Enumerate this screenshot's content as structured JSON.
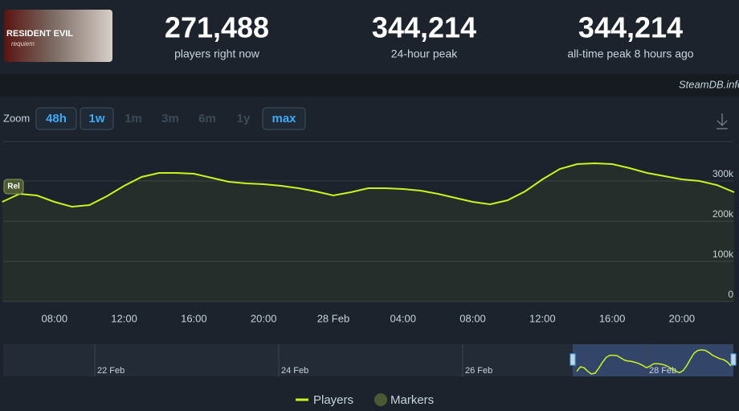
{
  "header": {
    "image_text": [
      "RESIDENT EVIL",
      "requiem"
    ],
    "stats": [
      {
        "value": "271,488",
        "label": "players right now"
      },
      {
        "value": "344,214",
        "label": "24-hour peak"
      },
      {
        "value": "344,214",
        "label": "all-time peak 8 hours ago"
      }
    ]
  },
  "source": "SteamDB.info",
  "zoom": {
    "label": "Zoom",
    "options": [
      {
        "label": "48h",
        "active": true
      },
      {
        "label": "1w",
        "active": true
      },
      {
        "label": "1m",
        "active": false
      },
      {
        "label": "3m",
        "active": false
      },
      {
        "label": "6m",
        "active": false
      },
      {
        "label": "1y",
        "active": false
      },
      {
        "label": "max",
        "active": true
      }
    ]
  },
  "chart_data": {
    "type": "line",
    "grid": true,
    "categories": [
      null,
      null,
      null,
      "08:00",
      null,
      null,
      null,
      "12:00",
      null,
      null,
      null,
      "16:00",
      null,
      null,
      null,
      "20:00",
      null,
      null,
      null,
      "28 Feb",
      null,
      null,
      null,
      "04:00",
      null,
      null,
      null,
      "08:00",
      null,
      null,
      null,
      "12:00",
      null,
      null,
      null,
      "16:00",
      null,
      null,
      null,
      "20:00",
      null,
      null,
      null
    ],
    "series": [
      {
        "name": "Players",
        "color": "#c8f51e",
        "values": [
          248000,
          268000,
          264000,
          248000,
          236000,
          240000,
          262000,
          288000,
          310000,
          320000,
          320000,
          318000,
          308000,
          298000,
          294000,
          292000,
          288000,
          282000,
          274000,
          264000,
          272000,
          282000,
          282000,
          280000,
          276000,
          268000,
          258000,
          248000,
          242000,
          252000,
          274000,
          304000,
          330000,
          342000,
          344000,
          342000,
          332000,
          320000,
          312000,
          304000,
          300000,
          290000,
          272000
        ]
      }
    ],
    "markers": [
      "Rel"
    ],
    "marker_legend": "Markers",
    "marker_color": "#4b5a32",
    "ylim": [
      0,
      400000
    ],
    "yticks": [
      0,
      {
        "value": 100000,
        "label": "100k"
      },
      {
        "value": 200000,
        "label": "200k"
      },
      {
        "value": 300000,
        "label": "300k"
      }
    ],
    "navigator_labels": [
      "22 Feb",
      "24 Feb",
      "26 Feb",
      "28 Feb"
    ]
  }
}
